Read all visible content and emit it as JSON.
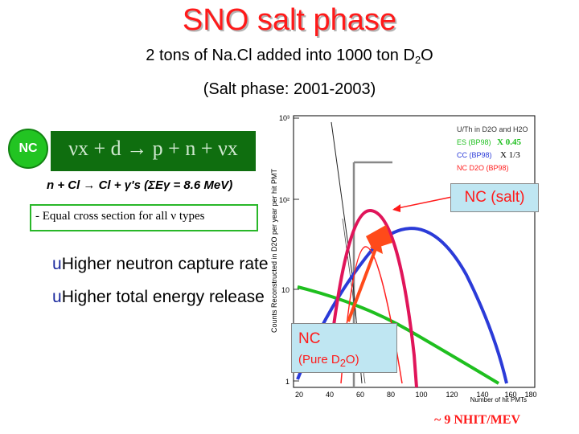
{
  "title": "SNO salt phase",
  "subtitle": {
    "text": "2 tons of Na.Cl added into 1000 ton D",
    "sub": "2",
    "end": "O"
  },
  "period": "(Salt phase: 2001-2003)",
  "nc_badge": "NC",
  "reaction": "νx + d → p + n + νx",
  "capture": "n + Cl → Cl + γ's (ΣEγ = 8.6 MeV)",
  "cross_section": "- Equal cross section for all ν types",
  "bullets": [
    "Higher neutron capture rate",
    "Higher total energy release"
  ],
  "bullet_marker": "u",
  "plot": {
    "ylabel": "Counts Reconstructed in D2O per year per hit PMT",
    "xlabel": "Number of hit PMTs",
    "y_ticks": [
      "10³",
      "10²",
      "10",
      "1"
    ],
    "x_ticks": [
      "20",
      "40",
      "60",
      "80",
      "100",
      "120",
      "140",
      "160",
      "180"
    ],
    "legend": [
      {
        "label": "U/Th in D2O and H2O",
        "color": "#333333"
      },
      {
        "label": "ES (BP98)",
        "scale": "X 0.45",
        "color": "#1fbf1f"
      },
      {
        "label": "CC (BP98)",
        "scale": "X 1/3",
        "color": "#2b3bd8"
      },
      {
        "label": "NC D2O (BP98)",
        "color": "#ff2020"
      }
    ]
  },
  "nc_salt_label": "NC (salt)",
  "nc_pure": {
    "line1": "NC",
    "line2_prefix": "(Pure D",
    "line2_sub": "2",
    "line2_suffix": "O)"
  },
  "nhit": "~ 9 NHIT/MEV",
  "colors": {
    "title": "#ff1a1a",
    "nc_salt_curve": "#e0155a",
    "cc_curve": "#2b3bd8",
    "es_curve": "#1fbf1f",
    "arrow": "#ff4a1a",
    "callout_bg": "#bfe6f2"
  }
}
